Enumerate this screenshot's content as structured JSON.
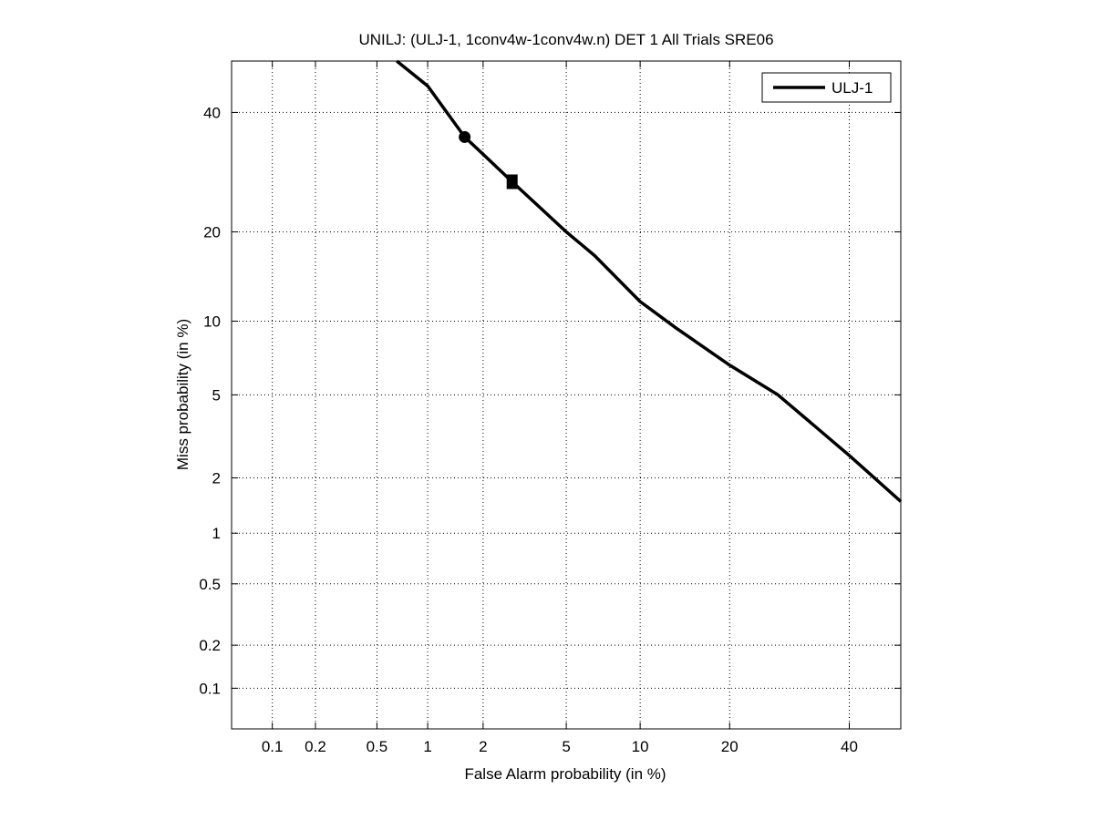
{
  "chart_data": {
    "type": "line",
    "title": "UNILJ: (ULJ-1, 1conv4w-1conv4w.n) DET 1 All Trials SRE06",
    "xlabel": "False Alarm probability (in %)",
    "ylabel": "Miss probability (in %)",
    "xscale": "probit",
    "yscale": "probit",
    "xlim": [
      0.05,
      50
    ],
    "ylim": [
      0.05,
      50
    ],
    "grid": true,
    "xticks": [
      0.1,
      0.2,
      0.5,
      1,
      2,
      5,
      10,
      20,
      40
    ],
    "xtick_labels": [
      "0.1",
      "0.2",
      "0.5",
      "1",
      "2",
      "5",
      "10",
      "20",
      "40"
    ],
    "yticks": [
      0.1,
      0.2,
      0.5,
      1,
      2,
      5,
      10,
      20,
      40
    ],
    "ytick_labels": [
      "0.1",
      "0.2",
      "0.5",
      "1",
      "2",
      "5",
      "10",
      "20",
      "40"
    ],
    "legend": {
      "placement": "top-right",
      "entries": [
        "ULJ-1"
      ]
    },
    "series": [
      {
        "name": "ULJ-1",
        "color": "#000000",
        "x": [
          0.66,
          1.0,
          1.6,
          2.0,
          2.8,
          5.0,
          6.6,
          10.0,
          13.5,
          20.0,
          27.3,
          40.0,
          50.0
        ],
        "y": [
          50.0,
          45.1,
          35.4,
          32.3,
          27.6,
          20.0,
          16.9,
          11.8,
          9.4,
          6.7,
          5.0,
          2.6,
          1.5
        ]
      }
    ],
    "markers": [
      {
        "shape": "circle",
        "x": 1.6,
        "y": 35.4
      },
      {
        "shape": "square",
        "x": 2.8,
        "y": 27.6
      }
    ]
  }
}
